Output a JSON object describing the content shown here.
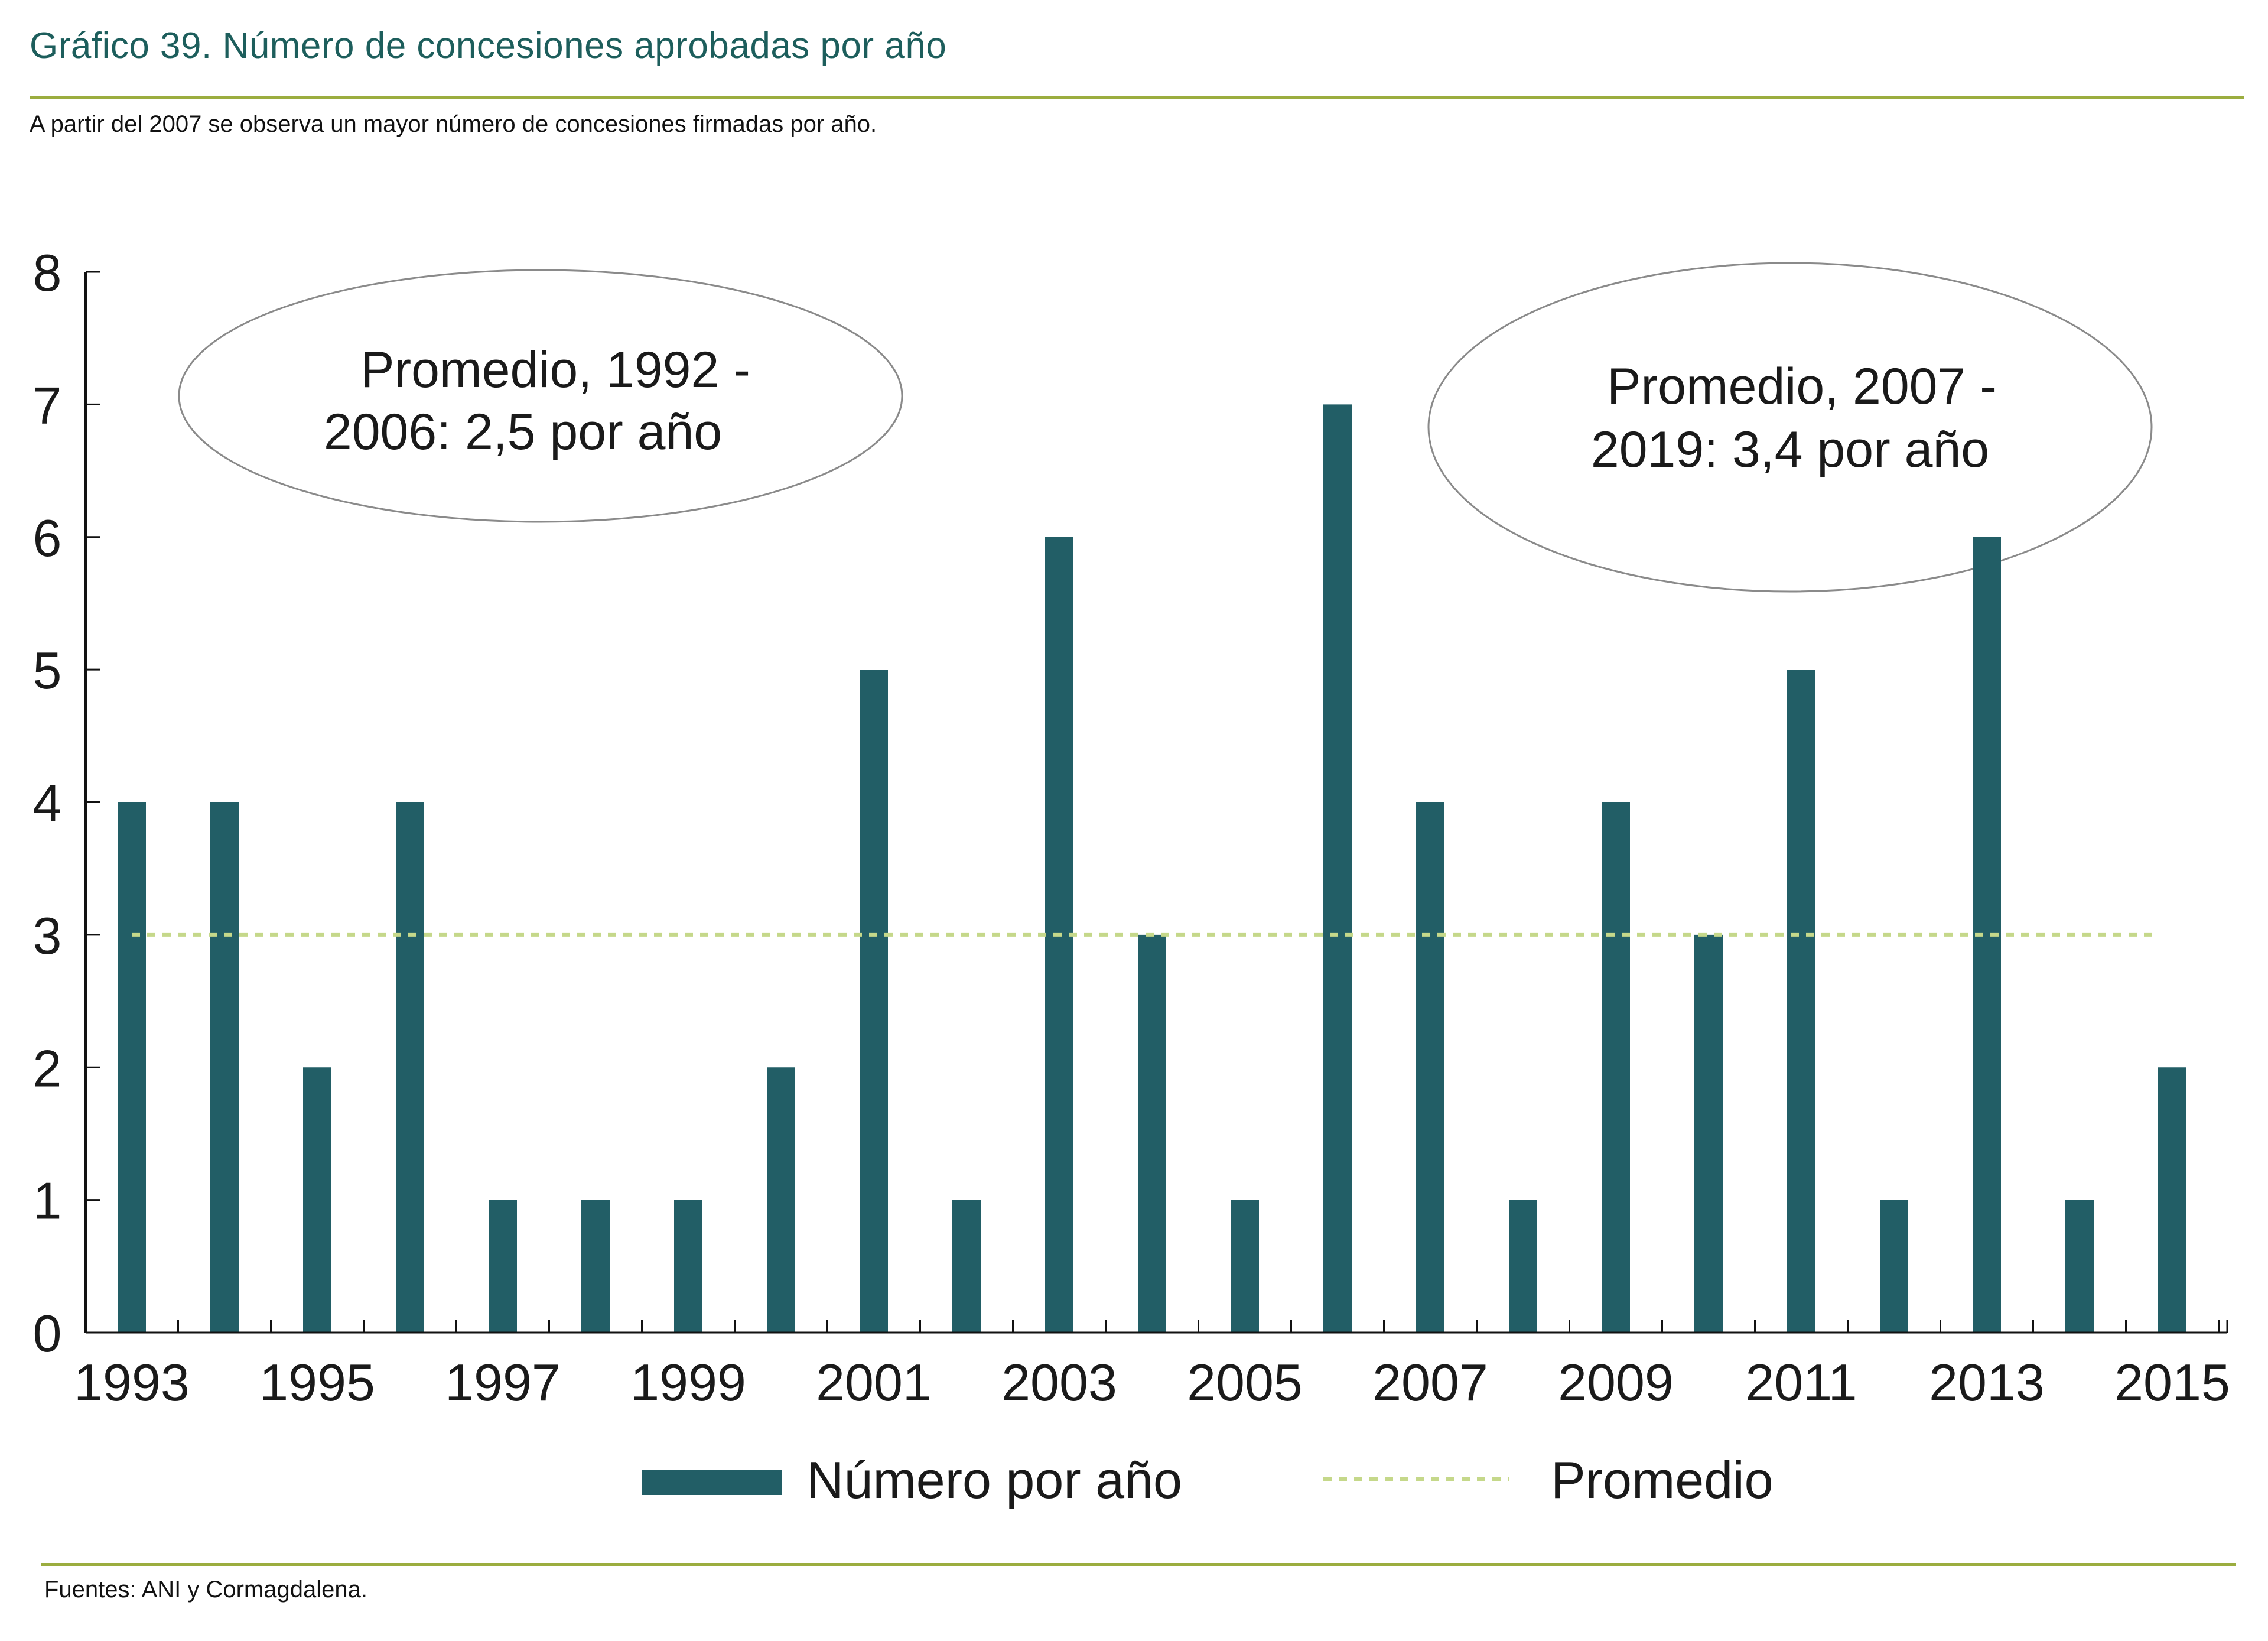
{
  "header": {
    "title": "Gráfico 39. Número de concesiones aprobadas por año",
    "subtitle": "A partir del 2007 se observa un mayor número de concesiones firmadas por año."
  },
  "footer": {
    "source": "Fuentes: ANI y Cormagdalena."
  },
  "colors": {
    "bar": "#225e66",
    "average_line": "#c5d88a",
    "title": "#1d5e5c",
    "rule": "#9bad3f",
    "ellipse": "#8a8a8a"
  },
  "chart_data": {
    "type": "bar",
    "title": "Gráfico 39. Número de concesiones aprobadas por año",
    "xlabel": "",
    "ylabel": "",
    "categories": [
      "1993",
      "1994",
      "1995",
      "1996",
      "1997",
      "1998",
      "1999",
      "2000",
      "2001",
      "2002",
      "2003",
      "2004",
      "2005",
      "2006",
      "2007",
      "2008",
      "2009",
      "2010",
      "2011",
      "2012",
      "2013",
      "2014",
      "2015"
    ],
    "x_tick_labels": [
      "1993",
      "1995",
      "1997",
      "1999",
      "2001",
      "2003",
      "2005",
      "2007",
      "2009",
      "2011",
      "2013",
      "2015"
    ],
    "series": [
      {
        "name": "Número por año",
        "type": "bar",
        "values": [
          4,
          4,
          2,
          4,
          1,
          1,
          1,
          2,
          5,
          1,
          6,
          3,
          1,
          7,
          4,
          1,
          4,
          3,
          5,
          1,
          6,
          1,
          2
        ]
      },
      {
        "name": "Promedio",
        "type": "line-dashed",
        "value": 3
      }
    ],
    "ylim": [
      0,
      8
    ],
    "yticks": [
      0,
      1,
      2,
      3,
      4,
      5,
      6,
      7,
      8
    ],
    "grid": false,
    "legend": {
      "placement": "bottom-center",
      "entries": [
        "Número por año",
        "Promedio"
      ]
    },
    "annotations": [
      {
        "text_lines": [
          "Promedio, 1992 -",
          "2006: 2,5 por año"
        ],
        "shape": "ellipse",
        "placement": "top-left"
      },
      {
        "text_lines": [
          "Promedio, 2007 -",
          "2019: 3,4 por año"
        ],
        "shape": "ellipse",
        "placement": "top-right"
      }
    ]
  }
}
